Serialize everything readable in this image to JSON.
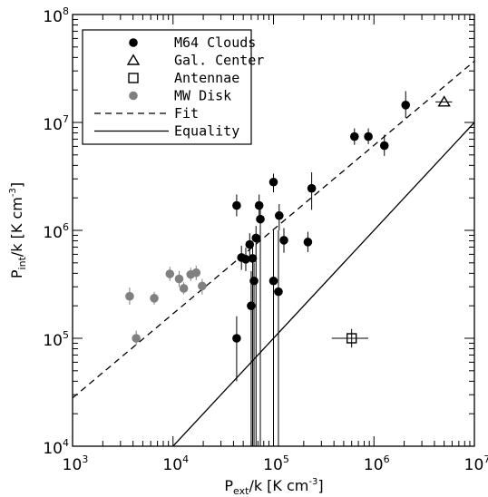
{
  "chart_data": {
    "type": "scatter",
    "xscale": "log",
    "yscale": "log",
    "xlim": [
      1000,
      10000000
    ],
    "ylim": [
      10000,
      100000000
    ],
    "x_ticks": [
      {
        "base": "10",
        "exp": "3"
      },
      {
        "base": "10",
        "exp": "4"
      },
      {
        "base": "10",
        "exp": "5"
      },
      {
        "base": "10",
        "exp": "6"
      },
      {
        "base": "10",
        "exp": "7"
      }
    ],
    "y_ticks": [
      {
        "base": "10",
        "exp": "4"
      },
      {
        "base": "10",
        "exp": "5"
      },
      {
        "base": "10",
        "exp": "6"
      },
      {
        "base": "10",
        "exp": "7"
      },
      {
        "base": "10",
        "exp": "8"
      }
    ],
    "xlabel": {
      "main": "P",
      "sub": "ext",
      "rest": "/k [K cm",
      "sup": "-3",
      "end": "]"
    },
    "ylabel": {
      "main": "P",
      "sub": "int",
      "rest": "/k [K cm",
      "sup": "-3",
      "end": "]"
    },
    "legend": {
      "placement": "top-left",
      "entries": [
        {
          "label": "M64 Clouds",
          "marker": "filled-circle",
          "color": "#000000"
        },
        {
          "label": "Gal. Center",
          "marker": "open-triangle",
          "color": "#000000"
        },
        {
          "label": "Antennae",
          "marker": "open-square",
          "color": "#000000"
        },
        {
          "label": "MW Disk",
          "marker": "filled-circle",
          "color": "#808080"
        },
        {
          "label": "Fit",
          "line": "dashed",
          "color": "#000000"
        },
        {
          "label": "Equality",
          "line": "solid",
          "color": "#000000"
        }
      ]
    },
    "series": [
      {
        "name": "M64 Clouds",
        "marker": "filled-circle",
        "color": "#000000",
        "points": [
          {
            "x": 43000,
            "y": 1700000,
            "ylo": 1350000,
            "yhi": 2150000
          },
          {
            "x": 43000,
            "y": 100000,
            "ylo": 40000,
            "yhi": 160000
          },
          {
            "x": 48000,
            "y": 560000,
            "ylo": 430000,
            "yhi": 720000
          },
          {
            "x": 53000,
            "y": 540000,
            "ylo": 420000,
            "yhi": 690000
          },
          {
            "x": 58000,
            "y": 740000,
            "ylo": 580000,
            "yhi": 940000
          },
          {
            "x": 60000,
            "y": 200000,
            "ylo": 10000,
            "yhi": 420000
          },
          {
            "x": 62000,
            "y": 550000,
            "ylo": 10000,
            "yhi": 700000
          },
          {
            "x": 64000,
            "y": 340000,
            "ylo": 10000,
            "yhi": 500000
          },
          {
            "x": 67000,
            "y": 850000,
            "ylo": 10000,
            "yhi": 1100000
          },
          {
            "x": 72000,
            "y": 1700000,
            "ylo": 1300000,
            "yhi": 2150000
          },
          {
            "x": 74000,
            "y": 1270000,
            "ylo": 10000,
            "yhi": 1600000
          },
          {
            "x": 100000,
            "y": 2800000,
            "ylo": 2250000,
            "yhi": 3350000
          },
          {
            "x": 100000,
            "y": 340000,
            "ylo": 10000,
            "yhi": 1000000
          },
          {
            "x": 112000,
            "y": 270000,
            "ylo": 10000,
            "yhi": 1000000
          },
          {
            "x": 114000,
            "y": 1370000,
            "ylo": 1000000,
            "yhi": 1750000
          },
          {
            "x": 127000,
            "y": 810000,
            "ylo": 620000,
            "yhi": 1050000
          },
          {
            "x": 220000,
            "y": 780000,
            "ylo": 630000,
            "yhi": 970000
          },
          {
            "x": 240000,
            "y": 2450000,
            "ylo": 1550000,
            "yhi": 3450000
          },
          {
            "x": 640000,
            "y": 7400000,
            "ylo": 6200000,
            "yhi": 8800000
          },
          {
            "x": 880000,
            "y": 7400000,
            "ylo": 6300000,
            "yhi": 8800000
          },
          {
            "x": 1270000,
            "y": 6100000,
            "ylo": 4900000,
            "yhi": 7700000
          },
          {
            "x": 2070000,
            "y": 14500000,
            "ylo": 11000000,
            "yhi": 19500000
          }
        ]
      },
      {
        "name": "Gal. Center",
        "marker": "open-triangle",
        "color": "#000000",
        "points": [
          {
            "x": 5000000,
            "y": 15500000,
            "xlo": 4100000,
            "xhi": 6000000
          }
        ]
      },
      {
        "name": "Antennae",
        "marker": "open-square",
        "color": "#000000",
        "points": [
          {
            "x": 600000,
            "y": 100000,
            "xlo": 380000,
            "xhi": 880000,
            "ylo": 82000,
            "yhi": 122000
          }
        ]
      },
      {
        "name": "MW Disk",
        "marker": "filled-circle",
        "color": "#808080",
        "points": [
          {
            "x": 3700,
            "y": 245000,
            "ylo": 205000,
            "yhi": 295000
          },
          {
            "x": 4300,
            "y": 100000,
            "ylo": 86000,
            "yhi": 118000
          },
          {
            "x": 6500,
            "y": 235000,
            "ylo": 205000,
            "yhi": 270000
          },
          {
            "x": 9300,
            "y": 395000,
            "ylo": 340000,
            "yhi": 460000
          },
          {
            "x": 11500,
            "y": 355000,
            "ylo": 300000,
            "yhi": 420000
          },
          {
            "x": 12800,
            "y": 290000,
            "ylo": 255000,
            "yhi": 330000
          },
          {
            "x": 15000,
            "y": 390000,
            "ylo": 340000,
            "yhi": 450000
          },
          {
            "x": 17000,
            "y": 405000,
            "ylo": 345000,
            "yhi": 470000
          },
          {
            "x": 19500,
            "y": 305000,
            "ylo": 255000,
            "yhi": 355000
          }
        ]
      }
    ],
    "lines": [
      {
        "name": "Fit",
        "style": "dashed",
        "color": "#000000",
        "x": [
          1000,
          10000000
        ],
        "y": [
          28000,
          37000000
        ]
      },
      {
        "name": "Equality",
        "style": "solid",
        "color": "#000000",
        "x": [
          10000,
          10000000
        ],
        "y": [
          10000,
          10000000
        ]
      }
    ]
  }
}
